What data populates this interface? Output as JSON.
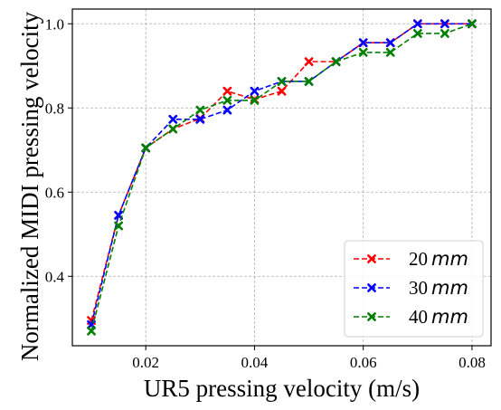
{
  "chart_data": {
    "type": "line",
    "xlabel": "UR5 pressing velocity (m/s)",
    "ylabel": "Normalized MIDI pressing velocity",
    "xlim": [
      0.0065,
      0.0835
    ],
    "ylim": [
      0.235,
      1.035
    ],
    "xticks": [
      0.02,
      0.04,
      0.06,
      0.08
    ],
    "xtick_labels": [
      "0.02",
      "0.04",
      "0.06",
      "0.08"
    ],
    "yticks": [
      0.4,
      0.6,
      0.8,
      1.0
    ],
    "ytick_labels": [
      "0.4",
      "0.6",
      "0.8",
      "1.0"
    ],
    "grid": true,
    "legend_position": "bottom-right",
    "x": [
      0.01,
      0.015,
      0.02,
      0.025,
      0.03,
      0.035,
      0.04,
      0.045,
      0.05,
      0.055,
      0.06,
      0.065,
      0.07,
      0.075,
      0.08
    ],
    "series": [
      {
        "name": "20",
        "unit": "mm",
        "color": "#ff0000",
        "values": [
          0.295,
          0.545,
          0.705,
          0.75,
          0.775,
          0.84,
          0.82,
          0.84,
          0.91,
          0.91,
          0.955,
          0.955,
          1.0,
          1.0,
          1.0
        ]
      },
      {
        "name": "30",
        "unit": "mm",
        "color": "#0000ff",
        "values": [
          0.285,
          0.545,
          0.705,
          0.773,
          0.773,
          0.795,
          0.84,
          0.863,
          0.863,
          0.91,
          0.955,
          0.955,
          1.0,
          1.0,
          1.0
        ]
      },
      {
        "name": "40",
        "unit": "mm",
        "color": "#008000",
        "values": [
          0.27,
          0.52,
          0.705,
          0.75,
          0.795,
          0.818,
          0.818,
          0.863,
          0.863,
          0.91,
          0.932,
          0.932,
          0.977,
          0.977,
          1.0
        ]
      }
    ]
  }
}
